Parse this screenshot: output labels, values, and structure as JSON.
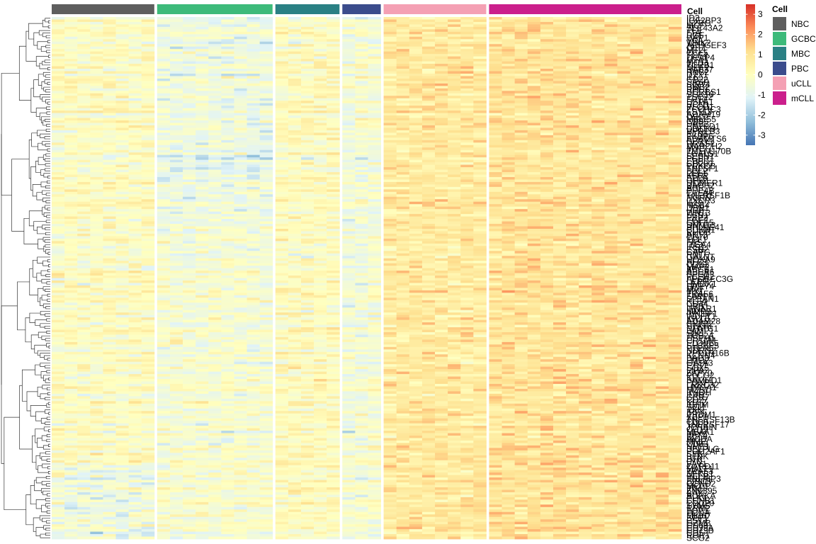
{
  "chart_data": {
    "type": "heatmap",
    "annotation_title": "Cell",
    "groups": [
      {
        "name": "NBC",
        "color": "#5E5E5E",
        "n": 8
      },
      {
        "name": "GCBC",
        "color": "#3DBA7A",
        "n": 9
      },
      {
        "name": "MBC",
        "color": "#2A8084",
        "n": 5
      },
      {
        "name": "PBC",
        "color": "#3B4C8C",
        "n": 3
      },
      {
        "name": "uCLL",
        "color": "#F4A0B4",
        "n": 8
      },
      {
        "name": "mCLL",
        "color": "#CB1F8C",
        "n": 15
      }
    ],
    "color_scale": {
      "title": "",
      "min": -3.5,
      "max": 3.5,
      "ticks": [
        3,
        2,
        1,
        0,
        -1,
        -2,
        -3
      ],
      "colors": [
        "#4575B4",
        "#91BFDB",
        "#E0F3F8",
        "#FFFFBF",
        "#FEE090",
        "#FC8D59",
        "#D73027"
      ]
    },
    "genes": [
      "ID3",
      "IGF2BP3",
      "IL2RG",
      "MCF",
      "SLC43A2",
      "TC1",
      "LTA",
      "RGF",
      "UAP1",
      "TCA",
      "WNK2",
      "ARHGEF3",
      "CLT1",
      "MT2",
      "CCL5",
      "TCF4",
      "DCAP4",
      "MTA1",
      "MCT1",
      "TCRB1",
      "MEF2",
      "RAB37",
      "RNS2",
      "DTX1",
      "IL6",
      "CD22",
      "SASP",
      "SIRT4",
      "BMB2",
      "RPL3",
      "SORBS1",
      "SGK10",
      "TSC22",
      "FRT2",
      "HSPA1",
      "RCN1",
      "PLCD1",
      "ZCCHC3",
      "FSTL3",
      "ADAM19",
      "DSC2",
      "MIR155",
      "CD9",
      "DAB2",
      "ENTPD1",
      "DOCK9",
      "VPREB3",
      "RTN1",
      "FKBP5",
      "ADAMTS6",
      "SPRY1",
      "RRAS2",
      "MARCH2",
      "MYC",
      "TMEM170B",
      "LGALS1",
      "SESN1",
      "FGFR1",
      "EBPL",
      "CD200",
      "PRKCB",
      "TNFSF1",
      "BCL2",
      "LEF1",
      "KSR2",
      "SLC9",
      "GPR1",
      "HOMER1",
      "BACH2",
      "AHR",
      "PDE4B",
      "CTLA4",
      "TNFRSF1B",
      "NGRN",
      "CXCR3",
      "IL10",
      "MSB4",
      "DBN1",
      "HGF",
      "WNT3",
      "ESR1",
      "PKP2",
      "FGF2",
      "GDF15",
      "DNMT3",
      "BHLHE41",
      "CDKN1",
      "RHOB",
      "AKT3",
      "CD70",
      "TCL1",
      "FAS",
      "ITGA4",
      "IRS1",
      "ESR2",
      "CAPG",
      "RNT",
      "GALNT",
      "HOXA9",
      "AFF3",
      "CDK2",
      "MAP2",
      "ABCB1",
      "ABCA6",
      "SPG7",
      "FCER2",
      "APOBEC3G",
      "LEPR",
      "HMOX1",
      "SPRY4",
      "MAF",
      "MX1",
      "TRAF6",
      "FARP1",
      "SPTAN1",
      "KLF4",
      "CD44",
      "HBB",
      "IFNAR1",
      "MMP9",
      "PIK3IP1",
      "WDFY1",
      "IGLL5",
      "ADAM28",
      "SNX22",
      "STAT6",
      "NFATC1",
      "LAMP1",
      "SIK1",
      "TOP2A",
      "HSPH1",
      "CRTAM",
      "ELOVL5",
      "SH3BP5",
      "PTPN6",
      "NDRG2",
      "PPP1R16B",
      "KCNN4",
      "BAG3",
      "LMO2",
      "GATA3",
      "ETS1",
      "SOX5",
      "LIPA",
      "ZAP70",
      "PLCG2",
      "KIT",
      "SAMHD1",
      "FOXP1",
      "LRRC32",
      "HMGA1",
      "MZB1",
      "RHOH",
      "IL4R",
      "CCR7",
      "CD27",
      "KLF2",
      "IGHM",
      "SELL",
      "TXK",
      "IRF4",
      "PRDM1",
      "XBP1",
      "TNFRSF13B",
      "CD38",
      "TNFRSF17",
      "JCHAIN",
      "CD19",
      "MS4A1",
      "PAX5",
      "BCL6",
      "AICDA",
      "MME",
      "CD83",
      "NME1",
      "SELPLG",
      "POU2AF1",
      "SYK",
      "BLNK",
      "BTK",
      "LYN",
      "VAV1",
      "CARD11",
      "MALT1",
      "TRAF3",
      "NFKB1",
      "RELB",
      "TNFAIP3",
      "BIRC3",
      "CCND2",
      "MCL1",
      "PIM1",
      "ZNF395",
      "BAX",
      "AURKA",
      "PLK1",
      "CCNB1",
      "CDC20",
      "TYMS",
      "RRM2",
      "TOP1",
      "PCNA",
      "MKI67",
      "SPP1",
      "CST7",
      "GZMB",
      "CD69",
      "CD79A",
      "CD79B",
      "CD5",
      "ROR1",
      "SCG2"
    ]
  }
}
